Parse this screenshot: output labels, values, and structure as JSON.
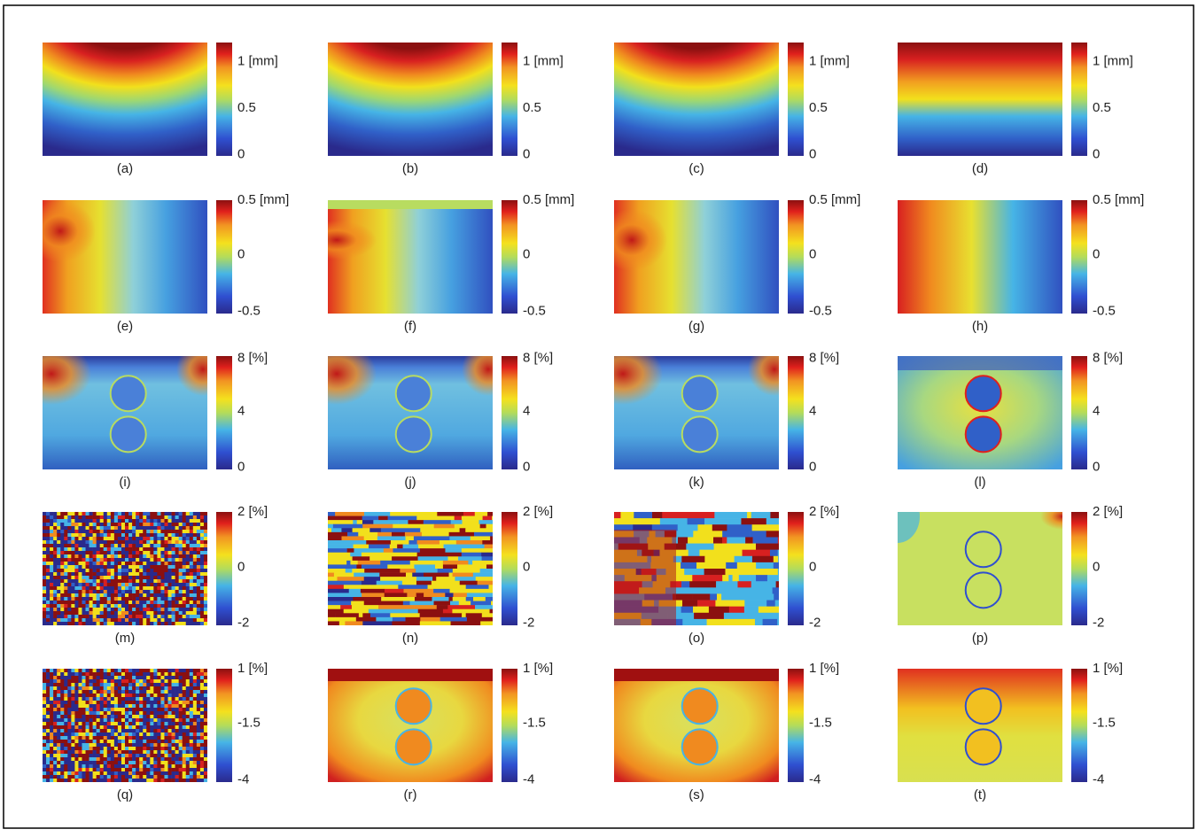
{
  "figure": {
    "rows": [
      {
        "ticks": [
          "1 [mm]",
          "0.5",
          "0"
        ],
        "panels": [
          "(a)",
          "(b)",
          "(c)",
          "(d)"
        ]
      },
      {
        "ticks": [
          "0.5 [mm]",
          "0",
          "-0.5"
        ],
        "panels": [
          "(e)",
          "(f)",
          "(g)",
          "(h)"
        ]
      },
      {
        "ticks": [
          "8 [%]",
          "4",
          "0"
        ],
        "panels": [
          "(i)",
          "(j)",
          "(k)",
          "(l)"
        ]
      },
      {
        "ticks": [
          "2 [%]",
          "0",
          "-2"
        ],
        "panels": [
          "(m)",
          "(n)",
          "(o)",
          "(p)"
        ]
      },
      {
        "ticks": [
          "1 [%]",
          "-1.5",
          "-4"
        ],
        "panels": [
          "(q)",
          "(r)",
          "(s)",
          "(t)"
        ]
      }
    ]
  }
}
